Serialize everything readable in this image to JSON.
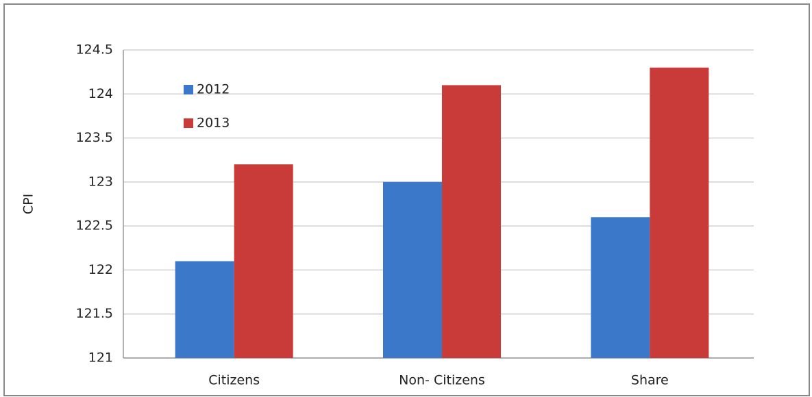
{
  "chart_data": {
    "type": "bar",
    "y_label": "CPI",
    "categories": [
      "Citizens",
      "Non- Citizens",
      "Share"
    ],
    "series": [
      {
        "name": "2012",
        "color": "#3b78c9",
        "values": [
          122.1,
          123.0,
          122.6
        ]
      },
      {
        "name": "2013",
        "color": "#c93b39",
        "values": [
          123.2,
          124.1,
          124.3
        ]
      }
    ],
    "ylim": [
      121,
      124.5
    ],
    "yticks": [
      121,
      121.5,
      122,
      122.5,
      123,
      123.5,
      124,
      124.5
    ],
    "grid": true,
    "legend": "upper-left"
  }
}
